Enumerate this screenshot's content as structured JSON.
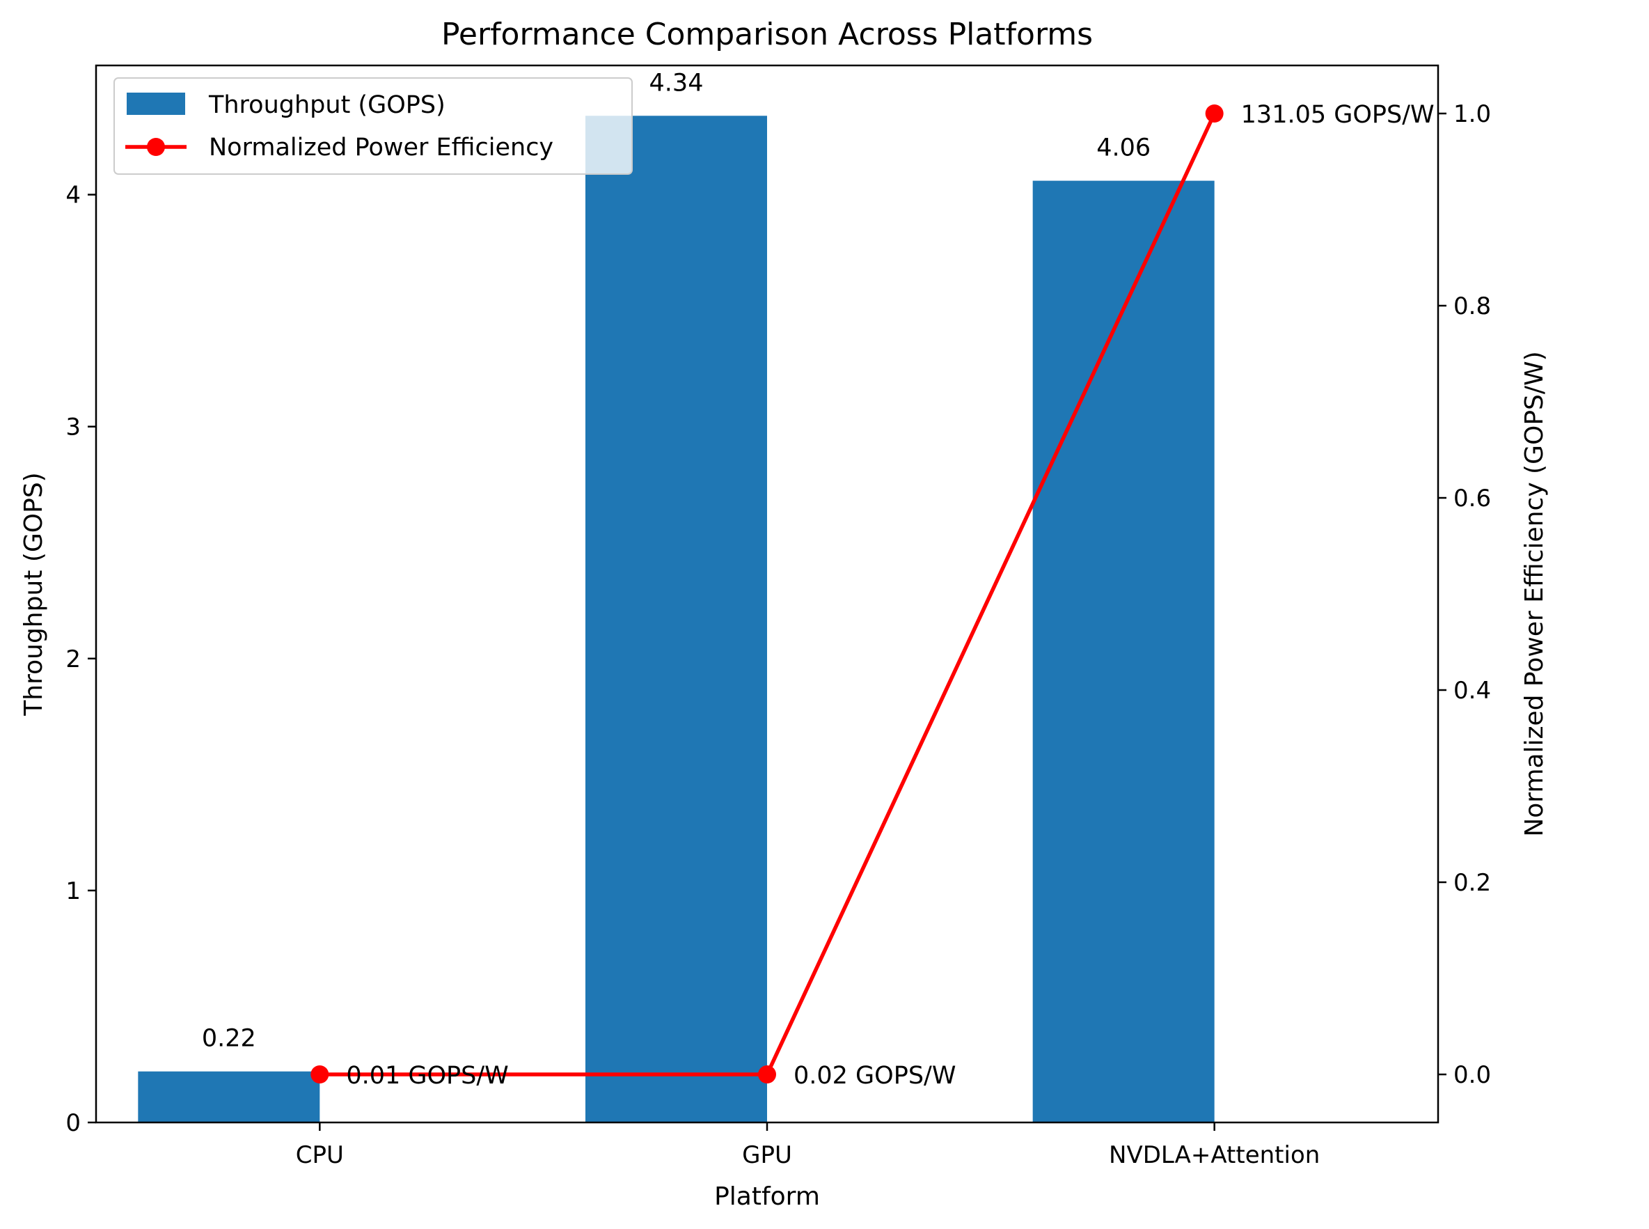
{
  "chart_data": {
    "type": "bar+line",
    "title": "Performance Comparison Across Platforms",
    "xlabel": "Platform",
    "ylabel": "Throughput (GOPS)",
    "ylabel_right": "Normalized Power Efficiency (GOPS/W)",
    "categories": [
      "CPU",
      "GPU",
      "NVDLA+Attention"
    ],
    "bar_series": {
      "name": "Throughput (GOPS)",
      "color": "#1f77b4",
      "values": [
        0.22,
        4.34,
        4.06
      ],
      "labels": [
        "0.22",
        "4.34",
        "4.06"
      ]
    },
    "line_series": {
      "name": "Normalized Power Efficiency",
      "color": "#ff0000",
      "values": [
        0.0,
        0.0,
        1.0
      ],
      "labels": [
        "0.01 GOPS/W",
        "0.02 GOPS/W",
        "131.05 GOPS/W"
      ]
    },
    "ylim_left": [
      0,
      4.557
    ],
    "yticks_left": [
      "0",
      "1",
      "2",
      "3",
      "4"
    ],
    "ylim_right": [
      -0.05,
      1.05
    ],
    "yticks_right": [
      "0.0",
      "0.2",
      "0.4",
      "0.6",
      "0.8",
      "1.0"
    ],
    "grid": false,
    "legend_position": "upper left"
  }
}
